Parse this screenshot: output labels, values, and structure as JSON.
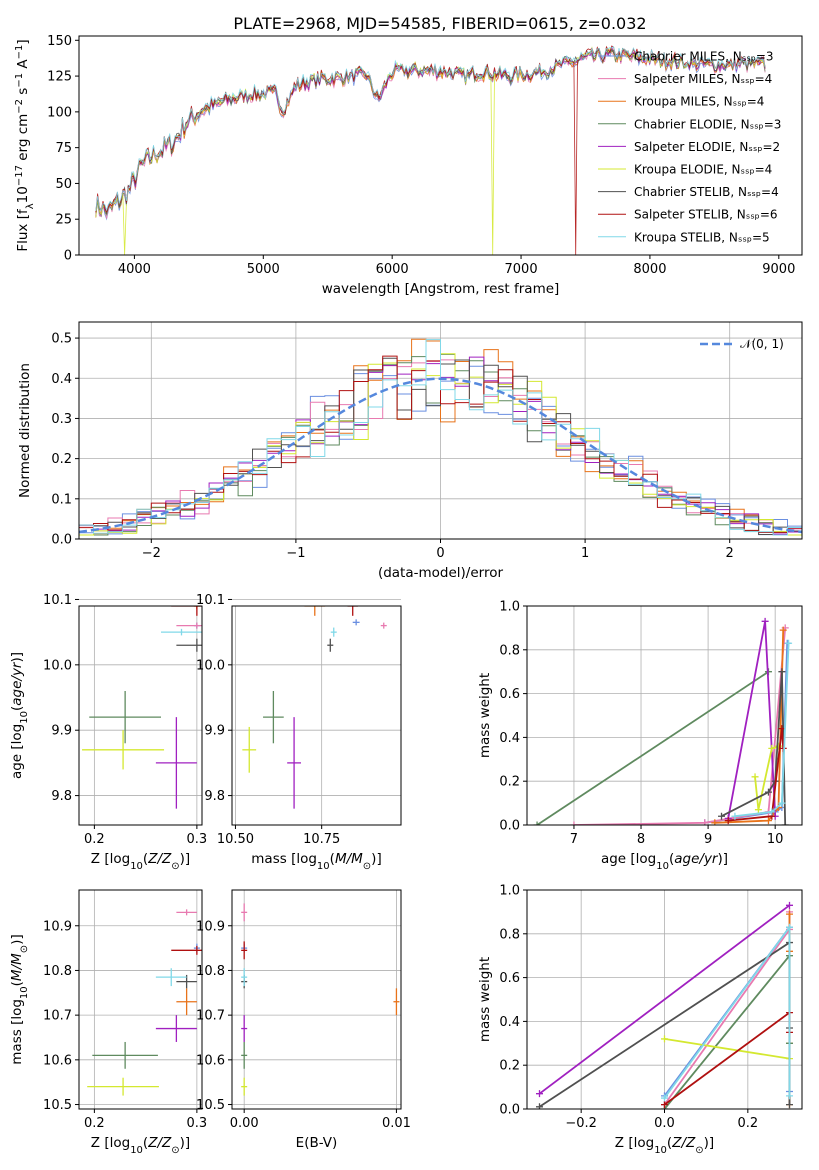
{
  "colors": {
    "Chabrier MILES": "#6a8fe0",
    "Salpeter MILES": "#e87ab0",
    "Kroupa MILES": "#e8731a",
    "Chabrier ELODIE": "#5f8a5f",
    "Salpeter ELODIE": "#a020c0",
    "Kroupa ELODIE": "#d4e830",
    "Chabrier STELIB": "#505050",
    "Salpeter STELIB": "#b01010",
    "Kroupa STELIB": "#80d8e8",
    "normal": "#5588dd"
  },
  "chart_data": [
    {
      "id": "spectrum",
      "type": "line",
      "title": "PLATE=2968, MJD=54585, FIBERID=0615, z=0.032",
      "xlabel": "wavelength [Angstrom, rest frame]",
      "ylabel": "Flux [fλ10⁻¹⁷ erg cm⁻² s⁻¹ A⁻¹]",
      "xlim": [
        3570,
        9180
      ],
      "ylim": [
        0,
        153
      ],
      "xticks": [
        "4000",
        "5000",
        "6000",
        "7000",
        "8000",
        "9000"
      ],
      "yticks": [
        "0",
        "25",
        "50",
        "75",
        "100",
        "125",
        "150"
      ],
      "grid": false,
      "legend_position": "right",
      "legend": [
        "Chabrier MILES, Nₛₛₚ=3",
        "Salpeter MILES, Nₛₛₚ=4",
        "Kroupa MILES, Nₛₛₚ=4",
        "Chabrier ELODIE, Nₛₛₚ=3",
        "Salpeter ELODIE, Nₛₛₚ=2",
        "Kroupa ELODIE, Nₛₛₚ=4",
        "Chabrier STELIB, Nₛₛₚ=4",
        "Salpeter STELIB, Nₛₛₚ=6",
        "Kroupa STELIB, Nₛₛₚ=5"
      ],
      "continuum": [
        [
          3700,
          35
        ],
        [
          3800,
          30
        ],
        [
          3880,
          38
        ],
        [
          3960,
          45
        ],
        [
          4050,
          62
        ],
        [
          4150,
          70
        ],
        [
          4300,
          78
        ],
        [
          4400,
          92
        ],
        [
          4500,
          100
        ],
        [
          4700,
          108
        ],
        [
          4900,
          112
        ],
        [
          5100,
          113
        ],
        [
          5150,
          100
        ],
        [
          5250,
          118
        ],
        [
          5400,
          122
        ],
        [
          5600,
          124
        ],
        [
          5800,
          126
        ],
        [
          5890,
          108
        ],
        [
          6000,
          128
        ],
        [
          6200,
          129
        ],
        [
          6400,
          128
        ],
        [
          6563,
          125
        ],
        [
          6700,
          128
        ],
        [
          6900,
          125
        ],
        [
          7100,
          127
        ],
        [
          7300,
          132
        ],
        [
          7500,
          138
        ],
        [
          7700,
          140
        ],
        [
          7900,
          138
        ],
        [
          8100,
          136
        ],
        [
          8300,
          134
        ],
        [
          8500,
          133
        ],
        [
          8700,
          133
        ],
        [
          8900,
          133
        ]
      ],
      "dropouts": [
        {
          "model": "Kroupa ELODIE",
          "x": 6780
        },
        {
          "model": "Salpeter STELIB",
          "x": 7420
        },
        {
          "model": "Kroupa ELODIE",
          "x": 3920
        }
      ]
    },
    {
      "id": "residuals",
      "type": "step-histogram",
      "xlabel": "(data-model)/error",
      "ylabel": "Normed distribution",
      "xlim": [
        -2.5,
        2.5
      ],
      "ylim": [
        0,
        0.54
      ],
      "xticks": [
        "−2",
        "−1",
        "0",
        "1",
        "2"
      ],
      "yticks": [
        "0.0",
        "0.1",
        "0.2",
        "0.3",
        "0.4",
        "0.5"
      ],
      "grid": true,
      "legend_position": "top-right",
      "legend": [
        "𝒩(0, 1)"
      ],
      "bin_width": 0.1,
      "bin_start": -2.5
    },
    {
      "id": "age-vs-Z",
      "type": "scatter",
      "xlabel": "Z [log₁₀(Z/Z⊙)]",
      "ylabel": "age  [log₁₀(age/yr)]",
      "xlim": [
        0.185,
        0.305
      ],
      "ylim": [
        9.755,
        10.09
      ],
      "xticks": [
        "0.2",
        "0.3"
      ],
      "yticks": [
        "9.8",
        "9.9",
        "10.0",
        "10.1"
      ],
      "grid": true,
      "points": [
        {
          "model": "Chabrier MILES",
          "x": 0.3,
          "y": 10.06,
          "xerr": 0.0,
          "yerr": 0.003
        },
        {
          "model": "Salpeter MILES",
          "x": 0.3,
          "y": 10.06,
          "xerr": 0.02,
          "yerr": 0.003
        },
        {
          "model": "Kroupa MILES",
          "x": 0.3,
          "y": 10.09,
          "xerr": 0.0,
          "yerr": 0.0
        },
        {
          "model": "Chabrier ELODIE",
          "x": 0.23,
          "y": 9.92,
          "xerr": 0.035,
          "yerr": 0.04
        },
        {
          "model": "Salpeter ELODIE",
          "x": 0.28,
          "y": 9.85,
          "xerr": 0.02,
          "yerr": 0.07
        },
        {
          "model": "Kroupa ELODIE",
          "x": 0.228,
          "y": 9.87,
          "xerr": 0.04,
          "yerr": 0.03
        },
        {
          "model": "Chabrier STELIB",
          "x": 0.3,
          "y": 10.03,
          "xerr": 0.02,
          "yerr": 0.01
        },
        {
          "model": "Salpeter STELIB",
          "x": 0.3,
          "y": 10.09,
          "xerr": 0.025,
          "yerr": 0.015
        },
        {
          "model": "Kroupa STELIB",
          "x": 0.285,
          "y": 10.05,
          "xerr": 0.02,
          "yerr": 0.005
        }
      ]
    },
    {
      "id": "age-vs-mass",
      "type": "scatter",
      "xlabel": "mass [log₁₀(M/M⊙)]",
      "ylabel": "",
      "xlim": [
        10.49,
        10.98
      ],
      "ylim": [
        9.755,
        10.09
      ],
      "xticks": [
        "10.50",
        "10.75"
      ],
      "yticks": [
        "9.8",
        "9.9",
        "10.0",
        "10.1"
      ],
      "grid": true,
      "points": [
        {
          "model": "Chabrier MILES",
          "x": 10.85,
          "y": 10.065,
          "xerr": 0.01,
          "yerr": 0.002
        },
        {
          "model": "Salpeter MILES",
          "x": 10.93,
          "y": 10.06,
          "xerr": 0.005,
          "yerr": 0.004
        },
        {
          "model": "Kroupa MILES",
          "x": 10.73,
          "y": 10.09,
          "xerr": 0.03,
          "yerr": 0.015
        },
        {
          "model": "Chabrier ELODIE",
          "x": 10.61,
          "y": 9.92,
          "xerr": 0.03,
          "yerr": 0.04
        },
        {
          "model": "Salpeter ELODIE",
          "x": 10.67,
          "y": 9.85,
          "xerr": 0.02,
          "yerr": 0.07
        },
        {
          "model": "Kroupa ELODIE",
          "x": 10.54,
          "y": 9.87,
          "xerr": 0.02,
          "yerr": 0.035
        },
        {
          "model": "Chabrier STELIB",
          "x": 10.775,
          "y": 10.03,
          "xerr": 0.005,
          "yerr": 0.01
        },
        {
          "model": "Salpeter STELIB",
          "x": 10.84,
          "y": 10.09,
          "xerr": 0.015,
          "yerr": 0.015
        },
        {
          "model": "Kroupa STELIB",
          "x": 10.785,
          "y": 10.05,
          "xerr": 0.005,
          "yerr": 0.007
        }
      ]
    },
    {
      "id": "weight-vs-age",
      "type": "line",
      "xlabel": "age  [log₁₀(age/yr)]",
      "ylabel": "mass weight",
      "xlim": [
        6.3,
        10.4
      ],
      "ylim": [
        0,
        1
      ],
      "xticks": [
        "7",
        "8",
        "9",
        "10"
      ],
      "yticks": [
        "0.0",
        "0.2",
        "0.4",
        "0.6",
        "0.8",
        "1.0"
      ],
      "grid": true,
      "series": [
        {
          "model": "Chabrier MILES",
          "x": [
            8.95,
            10.0,
            10.1,
            10.18
          ],
          "y": [
            0.01,
            0.06,
            0.08,
            0.83
          ]
        },
        {
          "model": "Salpeter MILES",
          "x": [
            7.0,
            8.95,
            9.9,
            10.15
          ],
          "y": [
            0.0,
            0.01,
            0.06,
            0.9
          ]
        },
        {
          "model": "Kroupa MILES",
          "x": [
            9.1,
            9.9,
            10.05,
            10.12
          ],
          "y": [
            0.01,
            0.02,
            0.08,
            0.89
          ]
        },
        {
          "model": "Chabrier ELODIE",
          "x": [
            6.45,
            9.9
          ],
          "y": [
            0.0,
            0.7
          ]
        },
        {
          "model": "Salpeter ELODIE",
          "x": [
            9.3,
            9.85,
            10.0
          ],
          "y": [
            0.03,
            0.93,
            0.04
          ]
        },
        {
          "model": "Kroupa ELODIE",
          "x": [
            9.7,
            9.75,
            9.95,
            10.05
          ],
          "y": [
            0.22,
            0.07,
            0.35,
            0.36
          ]
        },
        {
          "model": "Chabrier STELIB",
          "x": [
            9.2,
            9.9,
            10.0,
            10.1,
            10.15
          ],
          "y": [
            0.04,
            0.15,
            0.2,
            0.7,
            0.0
          ]
        },
        {
          "model": "Salpeter STELIB",
          "x": [
            9.3,
            9.95,
            10.1,
            10.12
          ],
          "y": [
            0.02,
            0.04,
            0.44,
            0.35
          ]
        },
        {
          "model": "Kroupa STELIB",
          "x": [
            9.4,
            9.95,
            10.1,
            10.2
          ],
          "y": [
            0.04,
            0.06,
            0.1,
            0.83
          ]
        }
      ]
    },
    {
      "id": "mass-vs-Z",
      "type": "scatter",
      "xlabel": "Z [log₁₀(Z/Z⊙)]",
      "ylabel": "mass [log₁₀(M/M⊙)]",
      "xlim": [
        0.185,
        0.305
      ],
      "ylim": [
        10.49,
        10.98
      ],
      "xticks": [
        "0.2",
        "0.3"
      ],
      "yticks": [
        "10.5",
        "10.6",
        "10.7",
        "10.8",
        "10.9"
      ],
      "grid": true,
      "points": [
        {
          "model": "Chabrier MILES",
          "x": 0.3,
          "y": 10.85,
          "xerr": 0.0,
          "yerr": 0.01
        },
        {
          "model": "Salpeter MILES",
          "x": 0.29,
          "y": 10.93,
          "xerr": 0.01,
          "yerr": 0.0
        },
        {
          "model": "Kroupa MILES",
          "x": 0.29,
          "y": 10.73,
          "xerr": 0.01,
          "yerr": 0.03
        },
        {
          "model": "Chabrier ELODIE",
          "x": 0.23,
          "y": 10.61,
          "xerr": 0.032,
          "yerr": 0.03
        },
        {
          "model": "Salpeter ELODIE",
          "x": 0.28,
          "y": 10.67,
          "xerr": 0.02,
          "yerr": 0.03
        },
        {
          "model": "Kroupa ELODIE",
          "x": 0.228,
          "y": 10.54,
          "xerr": 0.035,
          "yerr": 0.02
        },
        {
          "model": "Chabrier STELIB",
          "x": 0.29,
          "y": 10.775,
          "xerr": 0.01,
          "yerr": 0.015
        },
        {
          "model": "Salpeter STELIB",
          "x": 0.3,
          "y": 10.845,
          "xerr": 0.025,
          "yerr": 0.01
        },
        {
          "model": "Kroupa STELIB",
          "x": 0.275,
          "y": 10.785,
          "xerr": 0.015,
          "yerr": 0.02
        }
      ]
    },
    {
      "id": "mass-vs-ebv",
      "type": "scatter",
      "xlabel": "E(B-V)",
      "ylabel": "",
      "xlim": [
        -0.0008,
        0.0103
      ],
      "ylim": [
        10.49,
        10.98
      ],
      "xticks": [
        "0.00",
        "0.01"
      ],
      "yticks": [
        "10.5",
        "10.6",
        "10.7",
        "10.8",
        "10.9"
      ],
      "grid": true,
      "points": [
        {
          "model": "Chabrier MILES",
          "x": 0.0,
          "y": 10.85,
          "xerr": 0.0,
          "yerr": 0.01
        },
        {
          "model": "Salpeter MILES",
          "x": 0.0,
          "y": 10.93,
          "xerr": 0.0,
          "yerr": 0.02
        },
        {
          "model": "Kroupa MILES",
          "x": 0.01,
          "y": 10.73,
          "xerr": 0.0,
          "yerr": 0.03
        },
        {
          "model": "Chabrier ELODIE",
          "x": 0.0,
          "y": 10.61,
          "xerr": 0.0,
          "yerr": 0.03
        },
        {
          "model": "Salpeter ELODIE",
          "x": 0.0,
          "y": 10.67,
          "xerr": 0.0,
          "yerr": 0.03
        },
        {
          "model": "Kroupa ELODIE",
          "x": 0.0,
          "y": 10.54,
          "xerr": 0.0,
          "yerr": 0.02
        },
        {
          "model": "Chabrier STELIB",
          "x": 0.0,
          "y": 10.775,
          "xerr": 0.0,
          "yerr": 0.015
        },
        {
          "model": "Salpeter STELIB",
          "x": 0.0,
          "y": 10.845,
          "xerr": 0.0,
          "yerr": 0.02
        },
        {
          "model": "Kroupa STELIB",
          "x": 0.0,
          "y": 10.785,
          "xerr": 0.0,
          "yerr": 0.02
        }
      ]
    },
    {
      "id": "weight-vs-Z",
      "type": "line",
      "xlabel": "Z [log₁₀(Z/Z⊙)]",
      "ylabel": "mass weight",
      "xlim": [
        -0.33,
        0.33
      ],
      "ylim": [
        0,
        1
      ],
      "xticks": [
        "−0.2",
        "0.0",
        "0.2"
      ],
      "yticks": [
        "0.0",
        "0.2",
        "0.4",
        "0.6",
        "0.8",
        "1.0"
      ],
      "grid": true,
      "series": [
        {
          "model": "Chabrier MILES",
          "x": [
            0.0,
            0.3,
            0.3
          ],
          "y": [
            0.06,
            0.83,
            0.08
          ]
        },
        {
          "model": "Salpeter MILES",
          "x": [
            0.0,
            0.3,
            0.3
          ],
          "y": [
            0.02,
            0.82,
            0.9
          ]
        },
        {
          "model": "Kroupa MILES",
          "x": [
            0.3,
            0.3,
            0.3,
            0.3
          ],
          "y": [
            0.89,
            0.72,
            0.3,
            0.02
          ]
        },
        {
          "model": "Chabrier ELODIE",
          "x": [
            0.0,
            0.3,
            0.3
          ],
          "y": [
            0.0,
            0.7,
            0.3
          ]
        },
        {
          "model": "Salpeter ELODIE",
          "x": [
            -0.3,
            0.3
          ],
          "y": [
            0.07,
            0.93
          ]
        },
        {
          "model": "Kroupa ELODIE",
          "x": [
            0.0,
            0.3
          ],
          "y": [
            0.32,
            0.23
          ]
        },
        {
          "model": "Chabrier STELIB",
          "x": [
            -0.3,
            0.3,
            0.3,
            0.3
          ],
          "y": [
            0.01,
            0.76,
            0.37,
            0.02
          ]
        },
        {
          "model": "Salpeter STELIB",
          "x": [
            0.0,
            0.3,
            0.3
          ],
          "y": [
            0.02,
            0.44,
            0.35
          ]
        },
        {
          "model": "Kroupa STELIB",
          "x": [
            0.0,
            0.3,
            0.3
          ],
          "y": [
            0.05,
            0.83,
            0.06
          ]
        }
      ]
    }
  ]
}
